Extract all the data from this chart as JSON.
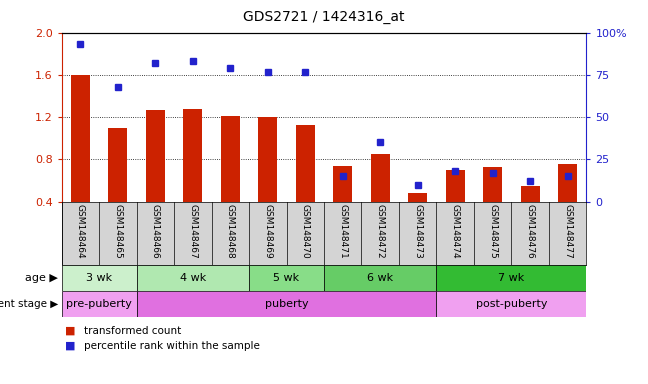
{
  "title": "GDS2721 / 1424316_at",
  "samples": [
    "GSM148464",
    "GSM148465",
    "GSM148466",
    "GSM148467",
    "GSM148468",
    "GSM148469",
    "GSM148470",
    "GSM148471",
    "GSM148472",
    "GSM148473",
    "GSM148474",
    "GSM148475",
    "GSM148476",
    "GSM148477"
  ],
  "bar_values": [
    1.6,
    1.1,
    1.27,
    1.28,
    1.21,
    1.2,
    1.13,
    0.74,
    0.85,
    0.48,
    0.7,
    0.73,
    0.55,
    0.76
  ],
  "dot_values_pct": [
    93,
    68,
    82,
    83,
    79,
    77,
    77,
    15,
    35,
    10,
    18,
    17,
    12,
    15
  ],
  "ylim_left": [
    0.4,
    2.0
  ],
  "ylim_right": [
    0,
    100
  ],
  "yticks_left": [
    0.4,
    0.8,
    1.2,
    1.6,
    2.0
  ],
  "yticks_right": [
    0,
    25,
    50,
    75,
    100
  ],
  "hlines": [
    0.8,
    1.2,
    1.6
  ],
  "bar_color": "#cc2200",
  "dot_color": "#2222cc",
  "age_groups": [
    {
      "label": "3 wk",
      "start": 0,
      "end": 2,
      "color": "#ccf0cc"
    },
    {
      "label": "4 wk",
      "start": 2,
      "end": 5,
      "color": "#b0e8b0"
    },
    {
      "label": "5 wk",
      "start": 5,
      "end": 7,
      "color": "#88dd88"
    },
    {
      "label": "6 wk",
      "start": 7,
      "end": 10,
      "color": "#66cc66"
    },
    {
      "label": "7 wk",
      "start": 10,
      "end": 14,
      "color": "#33bb33"
    }
  ],
  "dev_groups": [
    {
      "label": "pre-puberty",
      "start": 0,
      "end": 2,
      "color": "#f0a0f0"
    },
    {
      "label": "puberty",
      "start": 2,
      "end": 10,
      "color": "#e070e0"
    },
    {
      "label": "post-puberty",
      "start": 10,
      "end": 14,
      "color": "#f0a0f0"
    }
  ],
  "legend_bar_label": "transformed count",
  "legend_dot_label": "percentile rank within the sample",
  "sample_bg_color": "#d4d4d4",
  "bar_bottom": 0.4
}
